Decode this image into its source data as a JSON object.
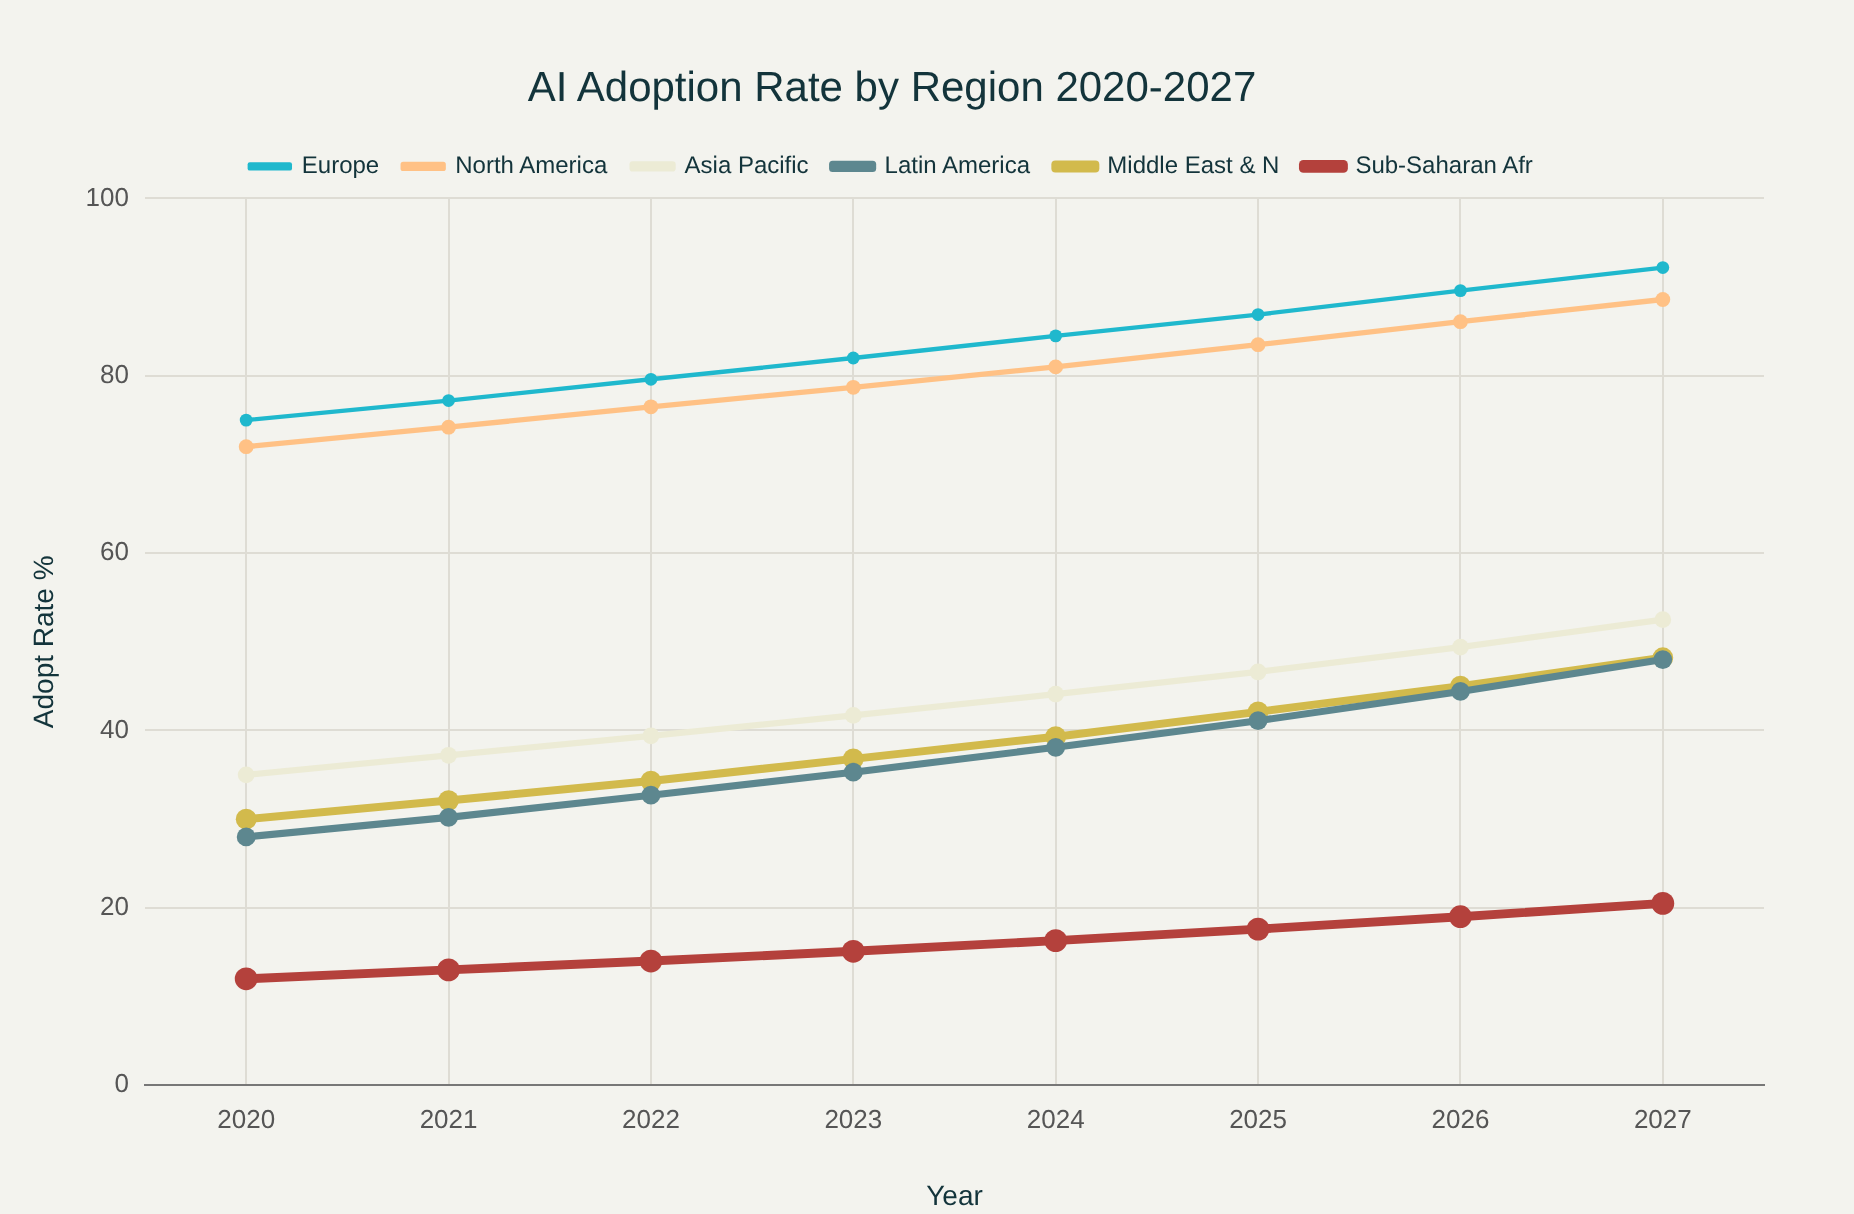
{
  "chart_data": {
    "type": "line",
    "title": "AI Adoption Rate by Region 2020-2027",
    "xlabel": "Year",
    "ylabel": "Adopt Rate %",
    "categories": [
      "2020",
      "2021",
      "2022",
      "2023",
      "2024",
      "2025",
      "2026",
      "2027"
    ],
    "series": [
      {
        "name": "Europe",
        "color": "#1fb8cd",
        "values": [
          75,
          77.2,
          79.6,
          82,
          84.5,
          86.9,
          89.6,
          92.2
        ]
      },
      {
        "name": "North America",
        "color": "#ffc185",
        "values": [
          72,
          74.2,
          76.5,
          78.7,
          81,
          83.5,
          86.1,
          88.6
        ]
      },
      {
        "name": "Asia Pacific",
        "color": "#ecebd5",
        "values": [
          35,
          37.2,
          39.4,
          41.7,
          44.1,
          46.6,
          49.4,
          52.5
        ]
      },
      {
        "name": "Latin America",
        "color": "#5d878f",
        "values": [
          28,
          30.2,
          32.7,
          35.3,
          38.1,
          41.1,
          44.4,
          48
        ]
      },
      {
        "name": "Middle East & N",
        "color": "#d2ba4c",
        "values": [
          30,
          32.1,
          34.3,
          36.8,
          39.3,
          42.1,
          45,
          48.2
        ]
      },
      {
        "name": "Sub-Saharan Afr",
        "color": "#b4413c",
        "values": [
          12,
          13,
          14,
          15.1,
          16.3,
          17.6,
          19,
          20.5
        ]
      }
    ],
    "ylim": [
      0,
      100
    ],
    "yticks": [
      0,
      20,
      40,
      60,
      80,
      100
    ],
    "grid": true,
    "legend": "top",
    "marker": "circle",
    "line_style": "solid"
  }
}
